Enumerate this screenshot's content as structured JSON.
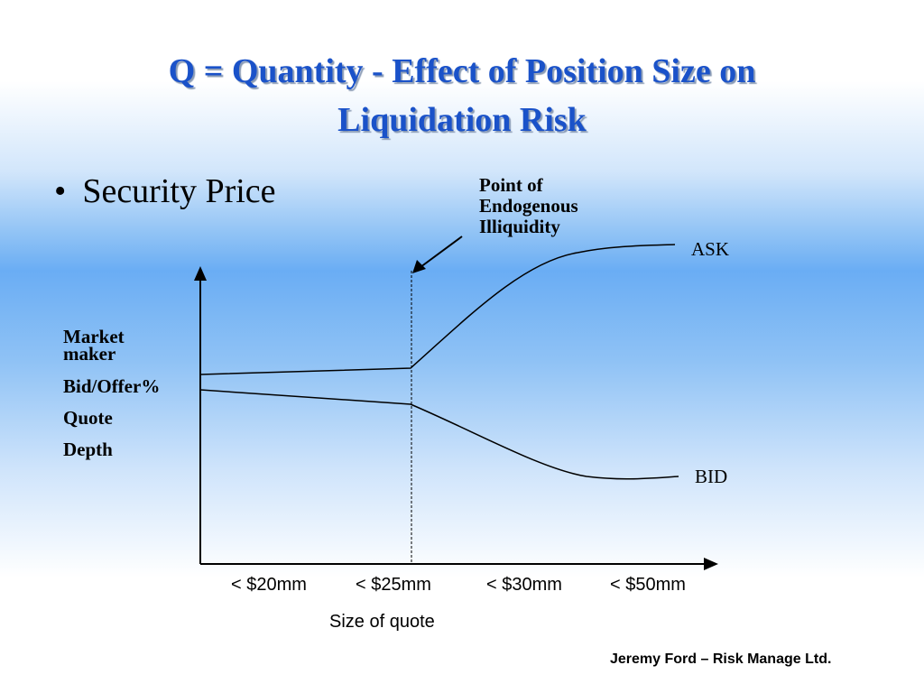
{
  "slide": {
    "title_line1": "Q = Quantity - Effect of Position Size on",
    "title_line2": "Liquidation Risk",
    "bullet_symbol": "•",
    "bullet_text": "Security Price",
    "annotation": [
      "Point of",
      "Endogenous",
      "Illiquidity"
    ],
    "y_axis_labels": [
      "Market",
      "maker",
      "Bid/Offer%",
      "Quote",
      "Depth"
    ],
    "series_labels": {
      "ask": "ASK",
      "bid": "BID"
    },
    "x_ticks": [
      "< $20mm",
      "< $25mm",
      "< $30mm",
      "< $50mm"
    ],
    "x_axis_label": "Size of quote",
    "footer": "Jeremy Ford – Risk Manage Ltd."
  },
  "colors": {
    "title": "#1a52c9",
    "background_band": "#6aadf4",
    "text": "#000000"
  }
}
